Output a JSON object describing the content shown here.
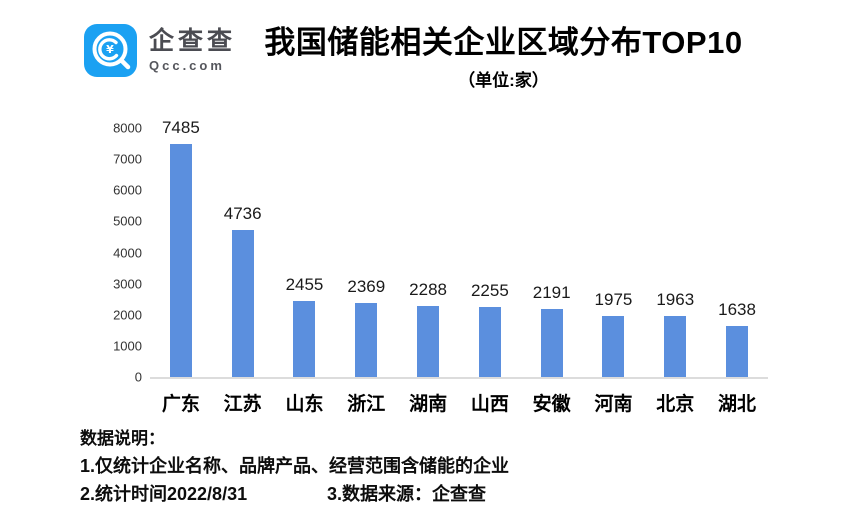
{
  "logo": {
    "name": "企查查",
    "domain": "Qcc.com",
    "brand_color": "#1BA1F2"
  },
  "chart_data": {
    "type": "bar",
    "title": "我国储能相关企业区域分布TOP10",
    "subtitle": "（单位:家）",
    "categories": [
      "广东",
      "江苏",
      "山东",
      "浙江",
      "湖南",
      "山西",
      "安徽",
      "河南",
      "北京",
      "湖北"
    ],
    "values": [
      7485,
      4736,
      2455,
      2369,
      2288,
      2255,
      2191,
      1975,
      1963,
      1638
    ],
    "ylim": [
      0,
      8000
    ],
    "ytick_interval": 1000,
    "bar_color": "#5B8FDE",
    "axis_line_color": "#dcdcdc",
    "grid": false,
    "value_labels": true,
    "legend": "none"
  },
  "footer": {
    "heading": "数据说明：",
    "note1": "1.仅统计企业名称、品牌产品、经营范围含储能的企业",
    "note2": "2.统计时间2022/8/31",
    "note3": "3.数据来源：企查查"
  }
}
